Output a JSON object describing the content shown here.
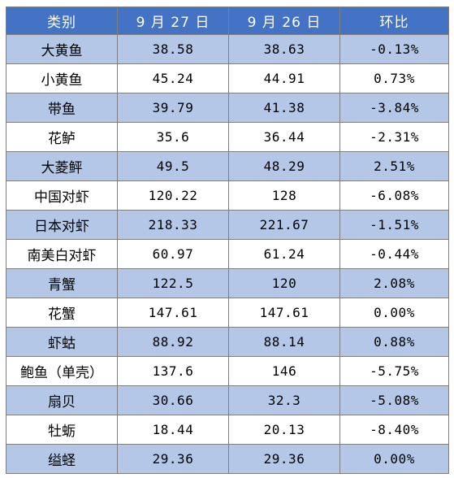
{
  "table": {
    "headers": [
      "类别",
      "9 月 27 日",
      "9 月 26 日",
      "环比"
    ],
    "rows": [
      [
        "大黄鱼",
        "38.58",
        "38.63",
        "-0.13%"
      ],
      [
        "小黄鱼",
        "45.24",
        "44.91",
        "0.73%"
      ],
      [
        "带鱼",
        "39.79",
        "41.38",
        "-3.84%"
      ],
      [
        "花鲈",
        "35.6",
        "36.44",
        "-2.31%"
      ],
      [
        "大菱鲆",
        "49.5",
        "48.29",
        "2.51%"
      ],
      [
        "中国对虾",
        "120.22",
        "128",
        "-6.08%"
      ],
      [
        "日本对虾",
        "218.33",
        "221.67",
        "-1.51%"
      ],
      [
        "南美白对虾",
        "60.97",
        "61.24",
        "-0.44%"
      ],
      [
        "青蟹",
        "122.5",
        "120",
        "2.08%"
      ],
      [
        "花蟹",
        "147.61",
        "147.61",
        "0.00%"
      ],
      [
        "虾蛄",
        "88.92",
        "88.14",
        "0.88%"
      ],
      [
        "鲍鱼（单壳）",
        "137.6",
        "146",
        "-5.75%"
      ],
      [
        "扇贝",
        "30.66",
        "32.3",
        "-5.08%"
      ],
      [
        "牡蛎",
        "18.44",
        "20.13",
        "-8.40%"
      ],
      [
        "缢蛏",
        "29.36",
        "29.36",
        "0.00%"
      ]
    ]
  },
  "colors": {
    "header_bg": "#4472c4",
    "header_text": "#ffffff",
    "row_shaded": "#b4c7e7",
    "row_plain": "#ffffff",
    "border": "#7f7f7f"
  }
}
